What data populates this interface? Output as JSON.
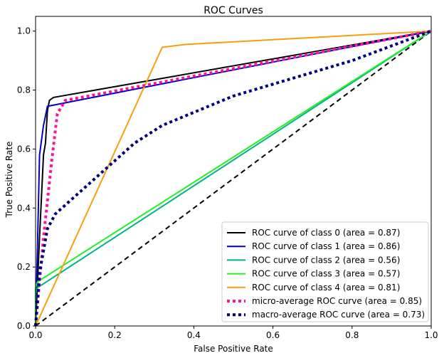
{
  "chart_data": {
    "type": "line",
    "title": "ROC Curves",
    "xlabel": "False Positive Rate",
    "ylabel": "True Positive Rate",
    "xlim": [
      0.0,
      1.0
    ],
    "ylim": [
      0.0,
      1.05
    ],
    "xticks": [
      "0.0",
      "0.2",
      "0.4",
      "0.6",
      "0.8",
      "1.0"
    ],
    "yticks": [
      "0.0",
      "0.2",
      "0.4",
      "0.6",
      "0.8",
      "1.0"
    ],
    "grid": false,
    "legend_position": "lower-right",
    "series": [
      {
        "name": "ROC curve of class 0 (area = 0.87)",
        "color": "#000000",
        "style": "solid",
        "x": [
          0.0,
          0.01,
          0.02,
          0.025,
          0.03,
          0.035,
          0.045,
          1.0
        ],
        "y": [
          0.0,
          0.3,
          0.58,
          0.62,
          0.73,
          0.765,
          0.775,
          1.0
        ]
      },
      {
        "name": "ROC curve of class 1 (area = 0.86)",
        "color": "#0000c8",
        "style": "solid",
        "x": [
          0.0,
          0.005,
          0.01,
          0.02,
          0.03,
          1.0
        ],
        "y": [
          0.0,
          0.28,
          0.58,
          0.68,
          0.745,
          1.0
        ]
      },
      {
        "name": "ROC curve of class 2 (area = 0.56)",
        "color": "#00b28c",
        "style": "solid",
        "x": [
          0.0,
          0.0,
          0.005,
          1.0
        ],
        "y": [
          0.0,
          0.11,
          0.13,
          1.0
        ]
      },
      {
        "name": "ROC curve of class 3 (area = 0.57)",
        "color": "#22f022",
        "style": "solid",
        "x": [
          0.0,
          0.0,
          0.005,
          1.0
        ],
        "y": [
          0.0,
          0.13,
          0.15,
          1.0
        ]
      },
      {
        "name": "ROC curve of class 4 (area = 0.81)",
        "color": "#f5a00f",
        "style": "solid",
        "x": [
          0.0,
          0.32,
          0.38,
          1.0
        ],
        "y": [
          0.0,
          0.945,
          0.955,
          1.0
        ]
      },
      {
        "name": "micro-average ROC curve (area = 0.85)",
        "color": "#ff1493",
        "style": "dotted",
        "x": [
          0.0,
          0.02,
          0.04,
          0.055,
          0.075,
          1.0
        ],
        "y": [
          0.0,
          0.3,
          0.55,
          0.72,
          0.765,
          1.0
        ]
      },
      {
        "name": "macro-average ROC curve (area = 0.73)",
        "color": "#000080",
        "style": "dotted",
        "x": [
          0.0,
          0.01,
          0.03,
          0.05,
          0.15,
          0.25,
          0.32,
          0.5,
          0.8,
          1.0
        ],
        "y": [
          0.0,
          0.18,
          0.33,
          0.38,
          0.5,
          0.62,
          0.68,
          0.78,
          0.9,
          1.0
        ]
      },
      {
        "name": "",
        "color": "#000000",
        "style": "dashed",
        "x": [
          0.0,
          1.0
        ],
        "y": [
          0.0,
          1.0
        ]
      }
    ]
  }
}
